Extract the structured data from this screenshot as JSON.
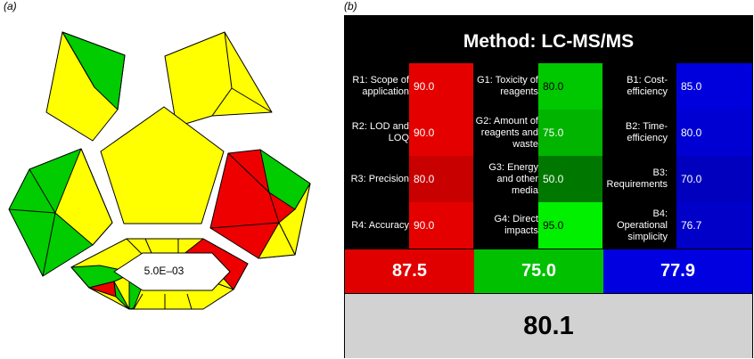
{
  "panel_a": {
    "label": "(a)",
    "center_value": "5.0E–03"
  },
  "panel_b": {
    "label": "(b)",
    "title": "Method: LC-MS/MS",
    "red": {
      "color": "#e00000",
      "criteria": [
        {
          "label": "R1: Scope of application",
          "value": "90.0"
        },
        {
          "label": "R2: LOD and LOQ",
          "value": "90.0"
        },
        {
          "label": "R3: Precision",
          "value": "80.0"
        },
        {
          "label": "R4: Accuracy",
          "value": "90.0"
        }
      ],
      "score": "87.5"
    },
    "green": {
      "color": "#00c000",
      "criteria": [
        {
          "label": "G1: Toxicity of reagents",
          "value": "80.0"
        },
        {
          "label": "G2: Amount of reagents and waste",
          "value": "75.0"
        },
        {
          "label": "G3: Energy and other media",
          "value": "50.0"
        },
        {
          "label": "G4: Direct impacts",
          "value": "95.0"
        }
      ],
      "score": "75.0"
    },
    "blue": {
      "color": "#0000e0",
      "criteria": [
        {
          "label": "B1: Cost-efficiency",
          "value": "85.0"
        },
        {
          "label": "B2: Time-efficiency",
          "value": "80.0"
        },
        {
          "label": "B3: Requirements",
          "value": "70.0"
        },
        {
          "label": "B4: Operational simplicity",
          "value": "76.7"
        }
      ],
      "score": "77.9"
    },
    "overall_score": "80.1",
    "overall_color": "#d2d2d2"
  },
  "colors": {
    "yellow": "#ffff00",
    "green": "#00cc00",
    "red": "#ee0000"
  }
}
